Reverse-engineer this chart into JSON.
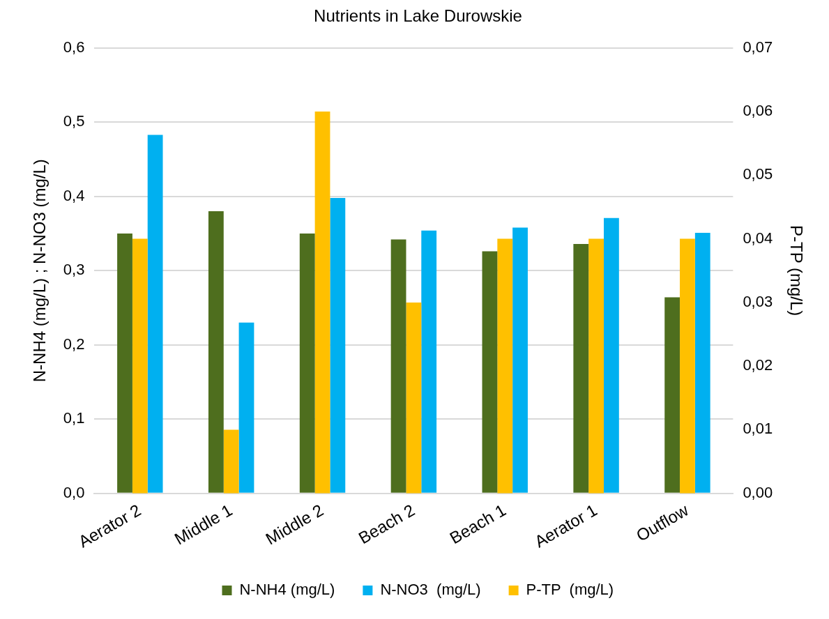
{
  "chart_data": {
    "type": "bar",
    "title": "Nutrients in Lake Durowskie",
    "categories": [
      "Aerator 2",
      "Middle 1",
      "Middle 2",
      "Beach 2",
      "Beach 1",
      "Aerator 1",
      "Outflow"
    ],
    "series": [
      {
        "name": "N-NH4 (mg/L)",
        "color": "#4e6e1e",
        "values": [
          0.35,
          0.38,
          0.35,
          0.342,
          0.326,
          0.336,
          0.264
        ]
      },
      {
        "name": "P-TP  (mg/L)",
        "color": "#ffc000",
        "axis": "y2",
        "values": [
          0.04,
          0.01,
          0.06,
          0.03,
          0.04,
          0.04,
          0.04
        ]
      },
      {
        "name": "N-NO3  (mg/L)",
        "color": "#00b0f0",
        "values": [
          0.483,
          0.23,
          0.398,
          0.354,
          0.358,
          0.371,
          0.351
        ]
      }
    ],
    "ylabel": "N-NH4 (mg/L) ; N-NO3 (mg/L)",
    "y2label": "P-TP (mg/L)",
    "ylim": [
      0,
      0.6
    ],
    "yticks": [
      {
        "value": 0,
        "label": "0,0"
      },
      {
        "value": 0.1,
        "label": "0,1"
      },
      {
        "value": 0.2,
        "label": "0,2"
      },
      {
        "value": 0.3,
        "label": "0,3"
      },
      {
        "value": 0.4,
        "label": "0,4"
      },
      {
        "value": 0.5,
        "label": "0,5"
      },
      {
        "value": 0.6,
        "label": "0,6"
      }
    ],
    "y2lim": [
      0,
      0.07
    ],
    "y2ticks": [
      {
        "value": 0,
        "label": "0,00"
      },
      {
        "value": 0.01,
        "label": "0,01"
      },
      {
        "value": 0.02,
        "label": "0,02"
      },
      {
        "value": 0.03,
        "label": "0,03"
      },
      {
        "value": 0.04,
        "label": "0,04"
      },
      {
        "value": 0.05,
        "label": "0,05"
      },
      {
        "value": 0.06,
        "label": "0,06"
      },
      {
        "value": 0.07,
        "label": "0,07"
      }
    ],
    "grid": "y",
    "legend": "bottom"
  }
}
